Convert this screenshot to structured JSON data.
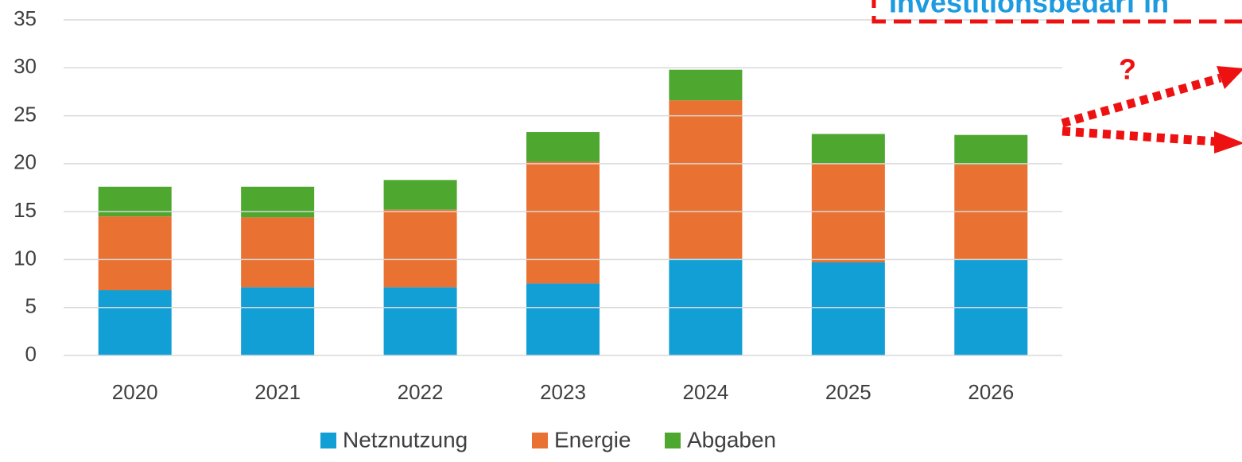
{
  "chart_data": {
    "type": "bar",
    "stacked": true,
    "categories": [
      "2020",
      "2021",
      "2022",
      "2023",
      "2024",
      "2025",
      "2026"
    ],
    "series": [
      {
        "name": "Netznutzung",
        "color": "#119fd6",
        "values": [
          6.8,
          7.1,
          7.1,
          7.5,
          10.1,
          9.7,
          10.0
        ]
      },
      {
        "name": "Energie",
        "color": "#e97132",
        "values": [
          7.7,
          7.3,
          8.1,
          12.7,
          16.5,
          10.3,
          9.9
        ]
      },
      {
        "name": "Abgaben",
        "color": "#4ea72e",
        "values": [
          3.1,
          3.2,
          3.1,
          3.1,
          3.2,
          3.1,
          3.1
        ]
      }
    ],
    "ylim": [
      0,
      35
    ],
    "yticks": [
      0,
      5,
      10,
      15,
      20,
      25,
      30,
      35
    ],
    "grid": true,
    "legend": "bottom",
    "annotations": [
      "Investitionsbedarf in",
      "?"
    ]
  }
}
